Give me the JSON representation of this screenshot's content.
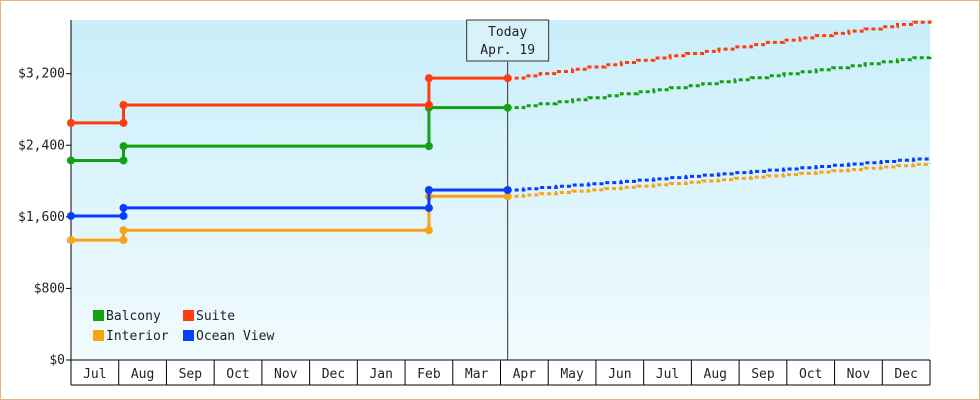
{
  "chart_data": {
    "type": "line",
    "title": "",
    "xlabel": "",
    "ylabel": "",
    "y_ticks": [
      0,
      800,
      1600,
      2400,
      3200
    ],
    "y_tick_labels": [
      "$0",
      "$800",
      "$1,600",
      "$2,400",
      "$3,200"
    ],
    "ylim": [
      0,
      3800
    ],
    "x_tick_labels": [
      "Jul",
      "Aug",
      "Sep",
      "Oct",
      "Nov",
      "Dec",
      "Jan",
      "Feb",
      "Mar",
      "Apr",
      "May",
      "Jun",
      "Jul",
      "Aug",
      "Sep",
      "Oct",
      "Nov",
      "Dec"
    ],
    "x_range_months": [
      0,
      18
    ],
    "grid": false,
    "legend_position": "bottom-left",
    "today_marker": {
      "x": 9.15,
      "line1": "Today",
      "line2": "Apr. 19"
    },
    "series": [
      {
        "name": "Balcony",
        "color": "#13a013",
        "points": [
          [
            0,
            2230
          ],
          [
            1.1,
            2230
          ],
          [
            1.1,
            2390
          ],
          [
            7.5,
            2390
          ],
          [
            7.5,
            2820
          ],
          [
            9.15,
            2820
          ]
        ],
        "forecast": [
          [
            9.15,
            2820
          ],
          [
            18,
            3400
          ]
        ]
      },
      {
        "name": "Suite",
        "color": "#ff3c10",
        "points": [
          [
            0,
            2650
          ],
          [
            1.1,
            2650
          ],
          [
            1.1,
            2850
          ],
          [
            7.5,
            2850
          ],
          [
            7.5,
            3150
          ],
          [
            9.15,
            3150
          ]
        ],
        "forecast": [
          [
            9.15,
            3150
          ],
          [
            18,
            3800
          ]
        ]
      },
      {
        "name": "Interior",
        "color": "#f7a414",
        "points": [
          [
            0,
            1340
          ],
          [
            1.1,
            1340
          ],
          [
            1.1,
            1450
          ],
          [
            7.5,
            1450
          ],
          [
            7.5,
            1830
          ],
          [
            9.15,
            1830
          ]
        ],
        "forecast": [
          [
            9.15,
            1830
          ],
          [
            18,
            2200
          ]
        ]
      },
      {
        "name": "Ocean View",
        "color": "#0a3cff",
        "points": [
          [
            0,
            1610
          ],
          [
            1.1,
            1610
          ],
          [
            1.1,
            1700
          ],
          [
            7.5,
            1700
          ],
          [
            7.5,
            1900
          ],
          [
            9.15,
            1900
          ]
        ],
        "forecast": [
          [
            9.15,
            1900
          ],
          [
            18,
            2260
          ]
        ]
      }
    ]
  }
}
